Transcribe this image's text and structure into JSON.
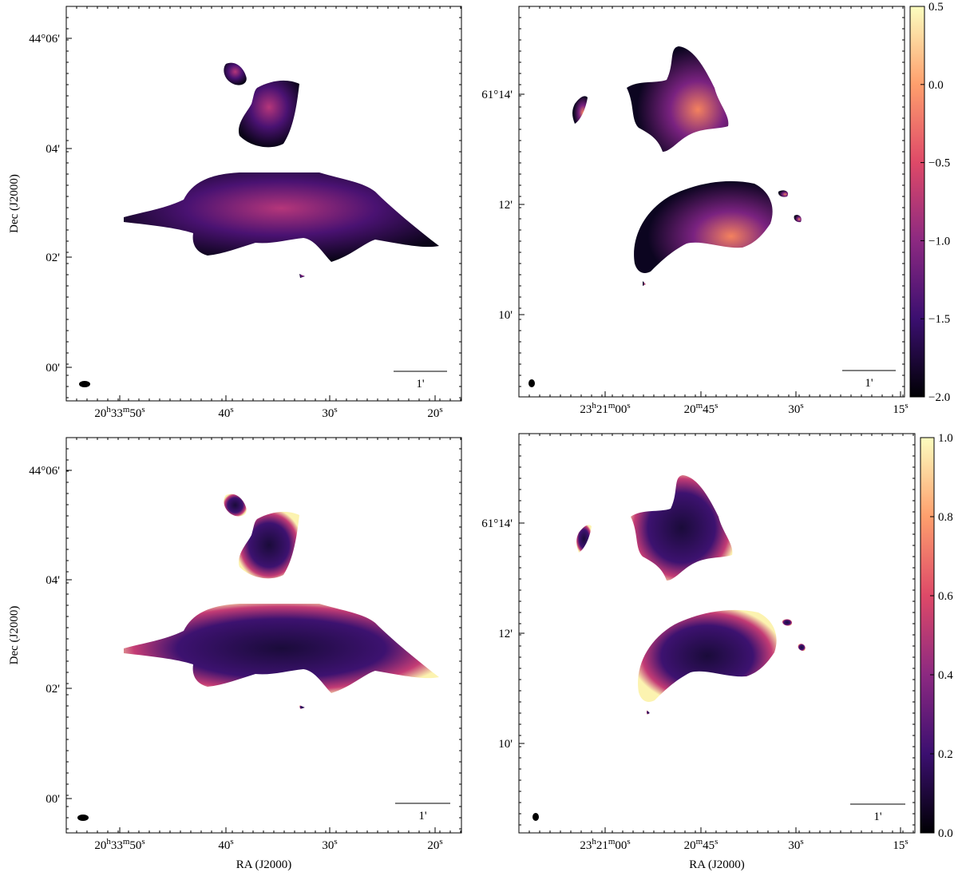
{
  "panels": [
    {
      "yticks": [
        "44°06'",
        "04'",
        "02'",
        "00'"
      ],
      "xticks": [
        [
          "20",
          "h",
          "33",
          "m",
          "50",
          "s"
        ],
        [
          "40",
          "s"
        ],
        [
          "30",
          "s"
        ],
        [
          "20",
          "s"
        ]
      ],
      "y_label": "Dec (J2000)",
      "scale_label": "1'"
    },
    {
      "yticks": [
        "61°14'",
        "12'",
        "10'"
      ],
      "xticks": [
        [
          "23",
          "h",
          "21",
          "m",
          "00",
          "s"
        ],
        [
          "20",
          "m",
          "45",
          "s"
        ],
        [
          "30",
          "s"
        ],
        [
          "15",
          "s"
        ]
      ],
      "scale_label": "1'",
      "colorbar": [
        "0.5",
        "0.0",
        "−0.5",
        "−1.0",
        "−1.5",
        "−2.0"
      ]
    },
    {
      "yticks": [
        "44°06'",
        "04'",
        "02'",
        "00'"
      ],
      "xticks": [
        [
          "20",
          "h",
          "33",
          "m",
          "50",
          "s"
        ],
        [
          "40",
          "s"
        ],
        [
          "30",
          "s"
        ],
        [
          "20",
          "s"
        ]
      ],
      "y_label": "Dec (J2000)",
      "x_label": "RA (J2000)",
      "scale_label": "1'"
    },
    {
      "yticks": [
        "61°14'",
        "12'",
        "10'"
      ],
      "xticks": [
        [
          "23",
          "h",
          "21",
          "m",
          "00",
          "s"
        ],
        [
          "20",
          "m",
          "45",
          "s"
        ],
        [
          "30",
          "s"
        ],
        [
          "15",
          "s"
        ]
      ],
      "x_label": "RA (J2000)",
      "scale_label": "1'",
      "colorbar": [
        "1.0",
        "0.8",
        "0.6",
        "0.4",
        "0.2",
        "0.0"
      ]
    }
  ]
}
